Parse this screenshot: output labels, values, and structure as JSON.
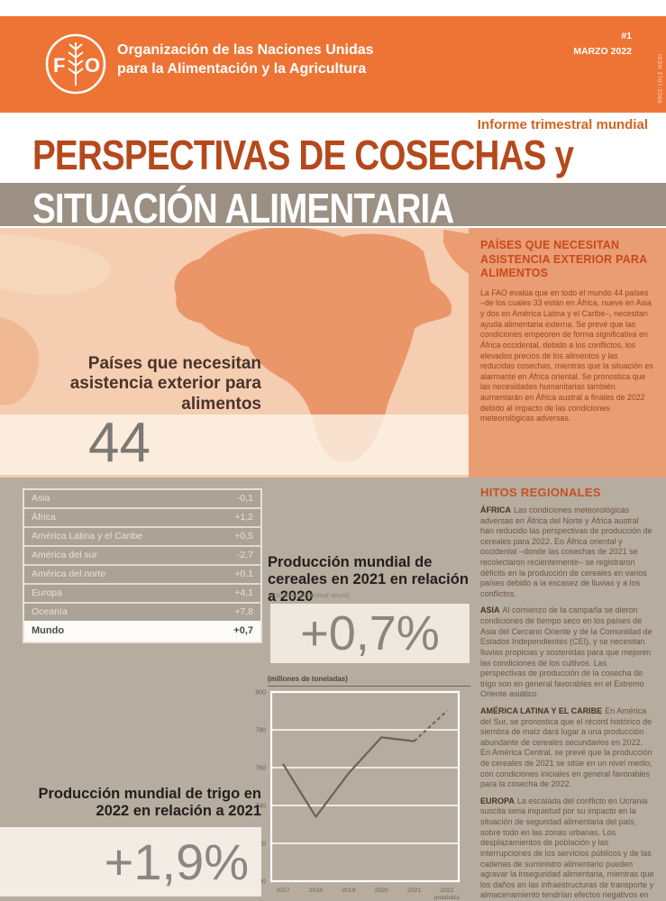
{
  "meta": {
    "issue": "#1",
    "date": "MARZO 2022",
    "issn": "ISSN 2707-2266"
  },
  "header": {
    "org_line1": "Organización de las Naciones Unidas",
    "org_line2": "para la Alimentación y la Agricultura",
    "logo_text": "FAO"
  },
  "masthead": {
    "kicker": "Informe trimestral mundial",
    "title_line1": "PERSPECTIVAS DE COSECHAS y",
    "title_line2": "SITUACIÓN ALIMENTARIA"
  },
  "map_section": {
    "left_label": "Países que necesitan asistencia exterior para alimentos",
    "count": "44",
    "panel": {
      "heading": "PAÍSES QUE NECESITAN ASISTENCIA EXTERIOR PARA ALIMENTOS",
      "body": "La FAO evalúa que en todo el mundo 44 países –de los cuales 33 están en África, nueve en Asia y dos en América Latina y el Caribe–, necesitan ayuda alimentaria externa. Se prevé que las condiciones empeoren de forma significativa en África occidental, debido a los conflictos, los elevados precios de los alimentos y las reducidas cosechas, mientras que la situación es alarmante en África oriental. Se pronostica que las necesidades humanitarias también aumentarán en África austral a finales de 2022 debido al impacto de las condiciones meteorológicas adversas."
    }
  },
  "stats": {
    "table": {
      "rows": [
        {
          "label": "Asia",
          "value": "-0,1"
        },
        {
          "label": "África",
          "value": "+1,2"
        },
        {
          "label": "América Latina y el Caribe",
          "value": "+0,5"
        },
        {
          "label": "América del sur",
          "value": "-2,7"
        },
        {
          "label": "América del norte",
          "value": "+0,1"
        },
        {
          "label": "Europa",
          "value": "+4,1"
        },
        {
          "label": "Oceanía",
          "value": "+7,8"
        }
      ],
      "total": {
        "label": "Mundo",
        "value": "+0,7"
      }
    },
    "cereals": {
      "heading": "Producción mundial de cereales en 2021 en relación a 2020",
      "unit_note": "(cambio porcentual anual)",
      "value": "+0,7%"
    },
    "wheat": {
      "heading": "Producción mundial de trigo en 2022 en relación a 2021",
      "value": "+1,9%"
    }
  },
  "chart_data": {
    "type": "line",
    "title": "Producción mundial de trigo",
    "unit_label": "(millones de toneladas)",
    "x_tick_labels": [
      "2017",
      "2018",
      "2019",
      "2020",
      "2021",
      "2022"
    ],
    "last_x_note": "pronóstico",
    "values": [
      762,
      734,
      757,
      776,
      774,
      790
    ],
    "forecast_from_index": 4,
    "ylim": [
      700,
      800
    ],
    "yticks": [
      800,
      780,
      760,
      740,
      720,
      700
    ],
    "grid": true,
    "legend": "none",
    "line_color": "#6E6258"
  },
  "highlights": {
    "heading": "HITOS REGIONALES",
    "items": [
      {
        "region": "ÁFRICA",
        "text": "Las condiciones meteorológicas adversas en África del Norte y África austral han reducido las perspectivas de producción de cereales para 2022. En África oriental y occidental –donde las cosechas de 2021 se recolectaron recientemente– se registraron déficits en la producción de cereales en varios países debido a la escasez de lluvias y a los conflictos."
      },
      {
        "region": "ASIA",
        "text": "Al comienzo de la campaña se dieron condiciones de tiempo seco en los países de Asia del Cercano Oriente y de la Comunidad de Estados Independientes (CEI), y se necesitan lluvias propicias y sostenidas para que mejoren las condiciones de los cultivos. Las perspectivas de producción de la cosecha de trigo son en general favorables en el Extremo Oriente asiático."
      },
      {
        "region": "AMÉRICA LATINA Y EL CARIBE",
        "text": "En América del Sur, se pronostica que el récord histórico de siembra de maíz dará lugar a una producción abundante de cereales secundarios en 2022. En América Central, se prevé que la producción de cereales de 2021 se sitúe en un nivel medio, con condiciones iniciales en general favorables para la cosecha de 2022."
      },
      {
        "region": "EUROPA",
        "text": "La escalada del conflicto en Ucrania suscita seria inquietud por su impacto en la situación de seguridad alimentaria del país, sobre todo en las zonas urbanas. Los desplazamientos de población y las interrupciones de los servicios públicos y de las cadenas de suministro alimentario pueden agravar la inseguridad alimentaria, mientras que los daños en las infraestructuras de transporte y almacenamiento tendrían efectos negativos en la capacidad de exportación de cereales."
      }
    ]
  },
  "colors": {
    "header_orange": "#ED7434",
    "title_red": "#B5491C",
    "kicker_orange": "#D2641F",
    "taupe_band": "#9B9083",
    "map_bg": "#F5CDB0",
    "africa_fill": "#EA9668",
    "panel_bg": "#EA9C72",
    "panel_heading": "#C74A1E",
    "panel_text": "#8E4B27",
    "section_bg": "#B6AC9F",
    "row_bg": "#ACA295",
    "row_text": "#E8E2D8",
    "stat_gray": "#8A8680",
    "hi_heading": "#C8511F",
    "hi_region": "#4A3220",
    "hi_text": "#6F5640",
    "dark_text": "#23201C"
  }
}
